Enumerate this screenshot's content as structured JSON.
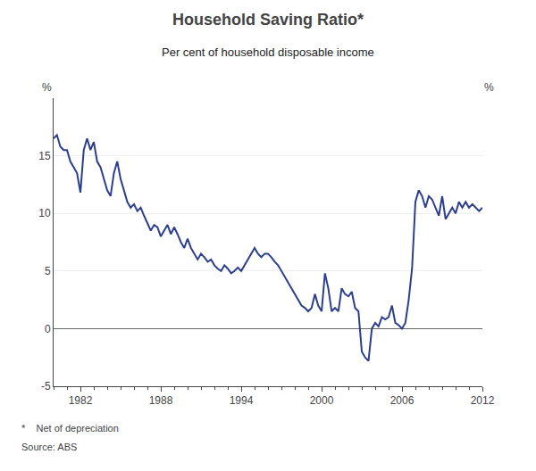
{
  "chart_data": {
    "type": "line",
    "title": "Household Saving Ratio*",
    "subtitle": "Per cent of household disposable income",
    "ylabel": "%",
    "y2label": "%",
    "annotations": [
      "*    Net of depreciation",
      "Source: ABS"
    ],
    "color": "#2c3f8f",
    "xlim": [
      1980.0,
      2012.0
    ],
    "xticks": [
      1982,
      1988,
      1994,
      2000,
      2006,
      2012
    ],
    "ylim": [
      -5,
      20
    ],
    "yticks": [
      -5,
      0,
      5,
      10,
      15
    ],
    "y2lim": [
      -5,
      20
    ],
    "y2ticks": [
      -5,
      0,
      5,
      10,
      15
    ],
    "grid": true,
    "x": [
      1980.0,
      1980.25,
      1980.5,
      1980.75,
      1981.0,
      1981.25,
      1981.5,
      1981.75,
      1982.0,
      1982.25,
      1982.5,
      1982.75,
      1983.0,
      1983.25,
      1983.5,
      1983.75,
      1984.0,
      1984.25,
      1984.5,
      1984.75,
      1985.0,
      1985.25,
      1985.5,
      1985.75,
      1986.0,
      1986.25,
      1986.5,
      1986.75,
      1987.0,
      1987.25,
      1987.5,
      1987.75,
      1988.0,
      1988.25,
      1988.5,
      1988.75,
      1989.0,
      1989.25,
      1989.5,
      1989.75,
      1990.0,
      1990.25,
      1990.5,
      1990.75,
      1991.0,
      1991.25,
      1991.5,
      1991.75,
      1992.0,
      1992.25,
      1992.5,
      1992.75,
      1993.0,
      1993.25,
      1993.5,
      1993.75,
      1994.0,
      1994.25,
      1994.5,
      1994.75,
      1995.0,
      1995.25,
      1995.5,
      1995.75,
      1996.0,
      1996.25,
      1996.5,
      1996.75,
      1997.0,
      1997.25,
      1997.5,
      1997.75,
      1998.0,
      1998.25,
      1998.5,
      1998.75,
      1999.0,
      1999.25,
      1999.5,
      1999.75,
      2000.0,
      2000.25,
      2000.5,
      2000.75,
      2001.0,
      2001.25,
      2001.5,
      2001.75,
      2002.0,
      2002.25,
      2002.5,
      2002.75,
      2003.0,
      2003.25,
      2003.5,
      2003.75,
      2004.0,
      2004.25,
      2004.5,
      2004.75,
      2005.0,
      2005.25,
      2005.5,
      2005.75,
      2006.0,
      2006.25,
      2006.5,
      2006.75,
      2007.0,
      2007.25,
      2007.5,
      2007.75,
      2008.0,
      2008.25,
      2008.5,
      2008.75,
      2009.0,
      2009.25,
      2009.5,
      2009.75,
      2010.0,
      2010.25,
      2010.5,
      2010.75,
      2011.0,
      2011.25,
      2011.5,
      2011.75,
      2012.0
    ],
    "values": [
      16.5,
      16.8,
      15.8,
      15.5,
      15.5,
      14.5,
      14.0,
      13.5,
      11.8,
      15.5,
      16.5,
      15.5,
      16.2,
      14.5,
      14.0,
      13.0,
      12.0,
      11.5,
      13.5,
      14.5,
      13.0,
      12.0,
      11.0,
      10.5,
      10.8,
      10.2,
      10.5,
      9.8,
      9.2,
      8.5,
      9.0,
      8.8,
      8.0,
      8.5,
      9.0,
      8.2,
      8.8,
      8.2,
      7.5,
      7.0,
      7.8,
      7.0,
      6.5,
      6.0,
      6.5,
      6.2,
      5.8,
      6.0,
      5.5,
      5.2,
      5.0,
      5.5,
      5.2,
      4.8,
      5.0,
      5.3,
      5.0,
      5.5,
      6.0,
      6.5,
      7.0,
      6.5,
      6.2,
      6.5,
      6.5,
      6.2,
      5.8,
      5.5,
      5.0,
      4.5,
      4.0,
      3.5,
      3.0,
      2.5,
      2.0,
      1.8,
      1.5,
      1.8,
      3.0,
      2.0,
      1.5,
      4.8,
      3.5,
      1.5,
      1.8,
      1.5,
      3.5,
      3.0,
      2.8,
      3.2,
      1.8,
      1.5,
      -2.0,
      -2.5,
      -2.8,
      0.0,
      0.5,
      0.2,
      1.0,
      0.8,
      1.0,
      2.0,
      0.5,
      0.3,
      0.0,
      0.5,
      2.5,
      5.2,
      11.0,
      12.0,
      11.5,
      10.5,
      11.5,
      11.2,
      10.5,
      9.8,
      11.5,
      9.5,
      10.0,
      10.5,
      10.0,
      11.0,
      10.5,
      11.0,
      10.5,
      10.8,
      10.5,
      10.2,
      10.5
    ]
  }
}
